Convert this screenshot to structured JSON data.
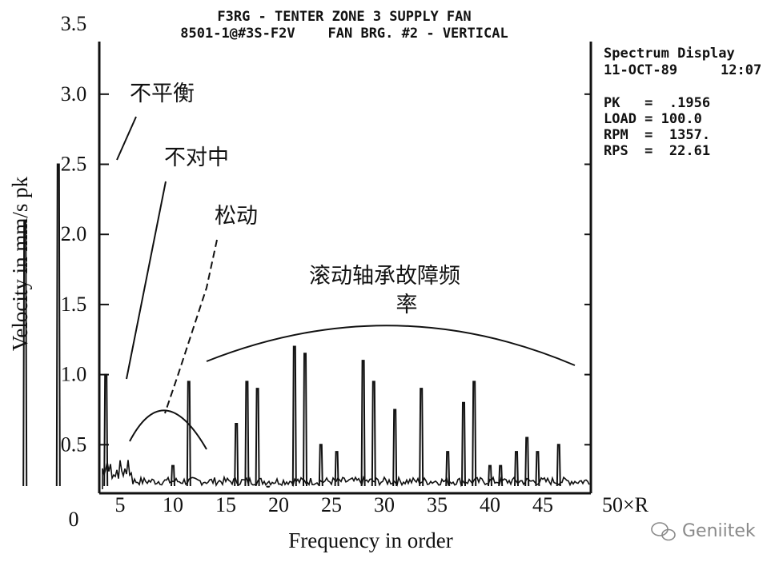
{
  "header": {
    "line1": "F3RG - TENTER ZONE 3 SUPPLY FAN",
    "line2": "8501-1@#3S-F2V    FAN BRG. #2 - VERTICAL"
  },
  "info": {
    "title": "Spectrum Display",
    "date": "11-OCT-89",
    "time": "12:07",
    "pk": "PK   =  .1956",
    "load": "LOAD = 100.0",
    "rpm": "RPM  =  1357.",
    "rps": "RPS  =  22.61"
  },
  "annotations": {
    "unbalance": "不平衡",
    "misalignment": "不对中",
    "looseness": "松动",
    "bearing_line1": "滚动轴承故障频",
    "bearing_line2": "率"
  },
  "watermark": "Geniitek",
  "colors": {
    "ink": "#111111",
    "watermark": "#8a8a8a"
  },
  "chart_data": {
    "type": "line",
    "xlabel": "Frequency in order",
    "ylabel": "Velocity in mm/s pk",
    "x_end_label": "50×R",
    "x_ticks": [
      5,
      10,
      15,
      20,
      25,
      30,
      35,
      40,
      45
    ],
    "y_ticks": [
      0.5,
      1.0,
      1.5,
      2.0,
      2.5,
      3.0,
      3.5
    ],
    "y_tick_labels": [
      "0.5",
      "1.0",
      "1.5",
      "2.0",
      "2.5",
      "3.0",
      "3.5"
    ],
    "origin_label": "0",
    "xlim": [
      0,
      50
    ],
    "ylim": [
      0,
      3.5
    ],
    "grid": false,
    "peaks": [
      {
        "x": 0.3,
        "y": 2.1
      },
      {
        "x": 1.0,
        "y": 2.5
      },
      {
        "x": 2.0,
        "y": 1.0
      },
      {
        "x": 10.0,
        "y": 0.35
      },
      {
        "x": 11.5,
        "y": 0.95
      },
      {
        "x": 16.0,
        "y": 0.65
      },
      {
        "x": 17.0,
        "y": 0.95
      },
      {
        "x": 18.0,
        "y": 0.9
      },
      {
        "x": 19.0,
        "y": 0.2
      },
      {
        "x": 21.5,
        "y": 1.2
      },
      {
        "x": 22.5,
        "y": 1.15
      },
      {
        "x": 24.0,
        "y": 0.5
      },
      {
        "x": 25.5,
        "y": 0.45
      },
      {
        "x": 28.0,
        "y": 1.1
      },
      {
        "x": 29.0,
        "y": 0.95
      },
      {
        "x": 31.0,
        "y": 0.75
      },
      {
        "x": 33.5,
        "y": 0.9
      },
      {
        "x": 36.0,
        "y": 0.45
      },
      {
        "x": 37.5,
        "y": 0.8
      },
      {
        "x": 38.5,
        "y": 0.95
      },
      {
        "x": 40.0,
        "y": 0.35
      },
      {
        "x": 41.0,
        "y": 0.35
      },
      {
        "x": 42.5,
        "y": 0.45
      },
      {
        "x": 43.5,
        "y": 0.55
      },
      {
        "x": 44.5,
        "y": 0.45
      },
      {
        "x": 46.5,
        "y": 0.5
      }
    ]
  }
}
